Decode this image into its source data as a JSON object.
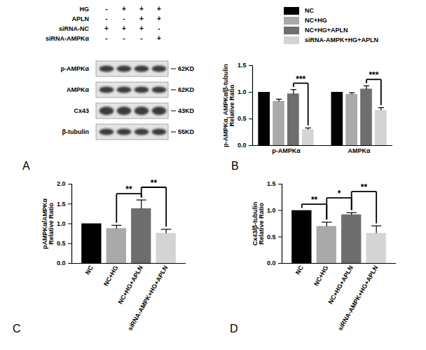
{
  "blot": {
    "panel": "A",
    "conditions": [
      {
        "label": "HG",
        "marks": [
          "-",
          "+",
          "+",
          "+"
        ]
      },
      {
        "label": "APLN",
        "marks": [
          "-",
          "-",
          "+",
          "+"
        ]
      },
      {
        "label": "siRNA-NC",
        "marks": [
          "+",
          "+",
          "+",
          "-"
        ]
      },
      {
        "label": "siRNA-AMPKα",
        "marks": [
          "-",
          "-",
          "-",
          "+"
        ]
      }
    ],
    "rows": [
      {
        "label": "p-AMPKα",
        "size": "62KD"
      },
      {
        "label": "AMPKα",
        "size": "62KD"
      },
      {
        "label": "Cx43",
        "size": "43KD"
      },
      {
        "label": "β-tubulin",
        "size": "55KD"
      }
    ]
  },
  "chart_data": [
    {
      "type": "bar",
      "panel": "B",
      "categories": [
        "p-AMPKα",
        "AMPKα"
      ],
      "series": [
        {
          "name": "NC",
          "color": "#000000",
          "values": [
            1.0,
            1.0
          ],
          "errors": [
            null,
            null
          ]
        },
        {
          "name": "NC+HG",
          "color": "#a9a9a9",
          "values": [
            0.83,
            0.96
          ],
          "errors": [
            0.04,
            0.03
          ]
        },
        {
          "name": "NC+HG+APLN",
          "color": "#6e6e6e",
          "values": [
            0.97,
            1.06
          ],
          "errors": [
            0.08,
            0.06
          ]
        },
        {
          "name": "siRNA-AMPK+HG+APLN",
          "color": "#d4d4d4",
          "values": [
            0.3,
            0.66
          ],
          "errors": [
            0.03,
            0.05
          ]
        }
      ],
      "y_label": "p-AMPKα, AMPKα/β-tubulin\nRelative Ratio",
      "ylim": [
        0,
        1.5
      ],
      "yticks": [
        {
          "value": 0,
          "label": "0.0"
        },
        {
          "value": 0.5,
          "label": "0.5"
        },
        {
          "value": 1,
          "label": "1.0"
        },
        {
          "value": 1.5,
          "label": "1.5"
        }
      ],
      "legend": "top-right",
      "significance": [
        {
          "category": "p-AMPKα",
          "between": [
            "NC+HG+APLN",
            "siRNA-AMPK+HG+APLN"
          ],
          "label": "***"
        },
        {
          "category": "AMPKα",
          "between": [
            "NC+HG+APLN",
            "siRNA-AMPK+HG+APLN"
          ],
          "label": "***"
        }
      ]
    },
    {
      "type": "bar",
      "panel": "C",
      "categories": [
        "NC",
        "NC+HG",
        "NC+HG+APLN",
        "siRNA-AMPK+HG+APLN"
      ],
      "values": [
        1.0,
        0.88,
        1.38,
        0.76
      ],
      "errors": [
        null,
        0.08,
        0.22,
        0.1
      ],
      "colors": [
        "#000000",
        "#a9a9a9",
        "#6e6e6e",
        "#d4d4d4"
      ],
      "y_label": "pAMPKα/AMPKα\nRelative Ratio",
      "ylim": [
        0,
        2
      ],
      "yticks": [
        {
          "value": 0,
          "label": "0.0"
        },
        {
          "value": 0.5,
          "label": "0.5"
        },
        {
          "value": 1,
          "label": "1.0"
        },
        {
          "value": 1.5,
          "label": "1.5"
        },
        {
          "value": 2,
          "label": "2.0"
        }
      ],
      "significance": [
        {
          "between": [
            "NC+HG",
            "NC+HG+APLN"
          ],
          "label": "**"
        },
        {
          "between": [
            "NC+HG+APLN",
            "siRNA-AMPK+HG+APLN"
          ],
          "label": "**"
        }
      ]
    },
    {
      "type": "bar",
      "panel": "D",
      "categories": [
        "NC",
        "NC+HG",
        "NC+HG+APLN",
        "siRNA-AMPK+HG+APLN"
      ],
      "values": [
        1.0,
        0.7,
        0.92,
        0.57
      ],
      "errors": [
        null,
        0.08,
        0.04,
        0.14
      ],
      "colors": [
        "#000000",
        "#a9a9a9",
        "#6e6e6e",
        "#d4d4d4"
      ],
      "y_label": "Cx43/β-tubulin\nRelative Ratio",
      "ylim": [
        0,
        1.5
      ],
      "yticks": [
        {
          "value": 0,
          "label": "0.0"
        },
        {
          "value": 0.5,
          "label": "0.5"
        },
        {
          "value": 1,
          "label": "1.0"
        },
        {
          "value": 1.5,
          "label": "1.5"
        }
      ],
      "significance": [
        {
          "between": [
            "NC",
            "NC+HG"
          ],
          "label": "**"
        },
        {
          "between": [
            "NC+HG",
            "NC+HG+APLN"
          ],
          "label": "*"
        },
        {
          "between": [
            "NC+HG+APLN",
            "siRNA-AMPK+HG+APLN"
          ],
          "label": "**"
        }
      ]
    }
  ]
}
